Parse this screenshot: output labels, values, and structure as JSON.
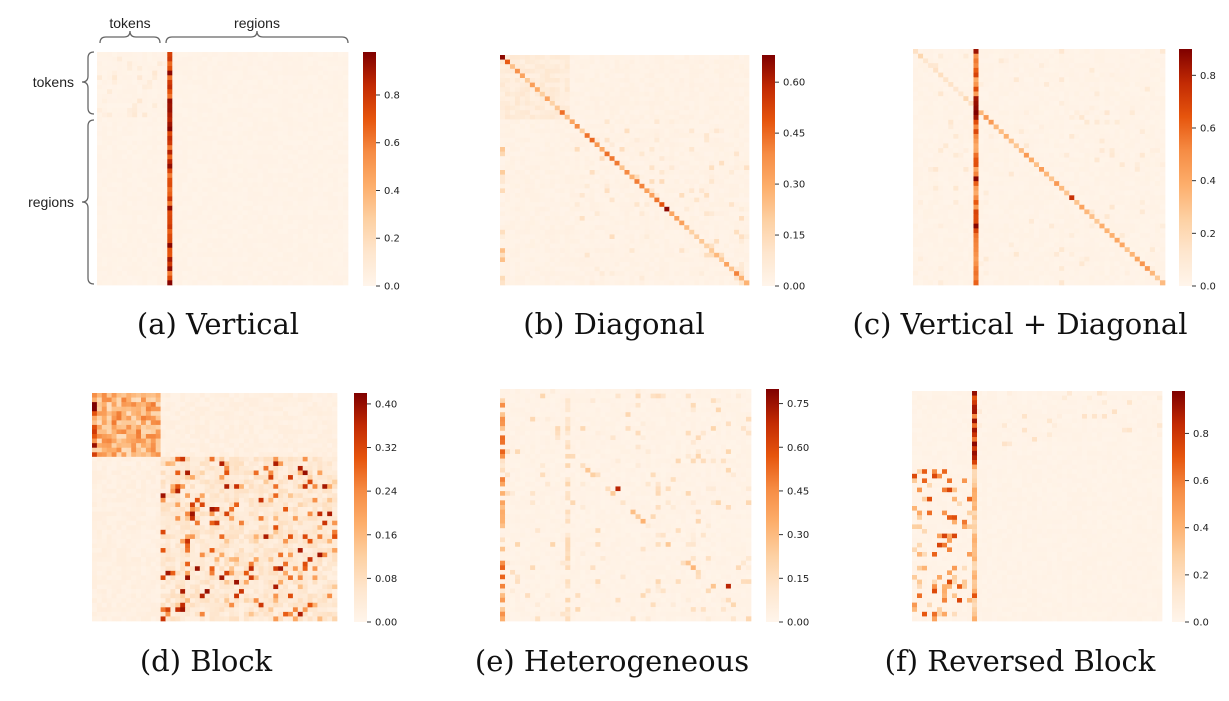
{
  "figure": {
    "annotations": {
      "top_tokens": "tokens",
      "top_regions": "regions",
      "left_tokens": "tokens",
      "left_regions": "regions"
    }
  },
  "colors": {
    "low": "#fff6e6",
    "scale": [
      "#fff5eb",
      "#fee6ce",
      "#fdd0a2",
      "#fdae6b",
      "#f68c44",
      "#e6550d",
      "#c22a03",
      "#7f0000"
    ]
  },
  "chart_data": [
    {
      "type": "heatmap",
      "pattern": "vertical",
      "caption": "(a) Vertical",
      "n": 50,
      "token_count": 14,
      "vmax": 0.98,
      "colorbar": {
        "ticks": [
          0.0,
          0.2,
          0.4,
          0.6,
          0.8
        ],
        "labels": [
          "0.0",
          "0.2",
          "0.4",
          "0.6",
          "0.8"
        ]
      },
      "highlight_column": 14,
      "highlight_value_range": [
        0.6,
        0.98
      ]
    },
    {
      "type": "heatmap",
      "pattern": "diagonal",
      "caption": "(b) Diagonal",
      "n": 50,
      "token_count": 14,
      "vmax": 0.68,
      "colorbar": {
        "ticks": [
          0.0,
          0.15,
          0.3,
          0.45,
          0.6
        ],
        "labels": [
          "0.00",
          "0.15",
          "0.30",
          "0.45",
          "0.60"
        ]
      },
      "diagonal_value_range": [
        0.15,
        0.68
      ]
    },
    {
      "type": "heatmap",
      "pattern": "vertical_diagonal",
      "caption": "(c) Vertical + Diagonal",
      "n": 50,
      "token_count": 12,
      "vmax": 0.9,
      "colorbar": {
        "ticks": [
          0.0,
          0.2,
          0.4,
          0.6,
          0.8
        ],
        "labels": [
          "0.0",
          "0.2",
          "0.4",
          "0.6",
          "0.8"
        ]
      },
      "highlight_column": 12,
      "highlight_value_range": [
        0.4,
        0.9
      ]
    },
    {
      "type": "heatmap",
      "pattern": "block",
      "caption": "(d) Block",
      "n": 50,
      "token_count": 14,
      "vmax": 0.42,
      "colorbar": {
        "ticks": [
          0.0,
          0.08,
          0.16,
          0.24,
          0.32,
          0.4
        ],
        "labels": [
          "0.00",
          "0.08",
          "0.16",
          "0.24",
          "0.32",
          "0.40"
        ]
      }
    },
    {
      "type": "heatmap",
      "pattern": "heterogeneous",
      "caption": "(e) Heterogeneous",
      "n": 50,
      "token_count": 13,
      "vmax": 0.8,
      "colorbar": {
        "ticks": [
          0.0,
          0.15,
          0.3,
          0.45,
          0.6,
          0.75
        ],
        "labels": [
          "0.00",
          "0.15",
          "0.30",
          "0.45",
          "0.60",
          "0.75"
        ]
      }
    },
    {
      "type": "heatmap",
      "pattern": "reversed_block",
      "caption": "(f) Reversed Block",
      "n": 50,
      "token_count": 12,
      "vmax": 0.98,
      "colorbar": {
        "ticks": [
          0.0,
          0.2,
          0.4,
          0.6,
          0.8
        ],
        "labels": [
          "0.0",
          "0.2",
          "0.4",
          "0.6",
          "0.8"
        ]
      },
      "highlight_column": 12
    }
  ]
}
